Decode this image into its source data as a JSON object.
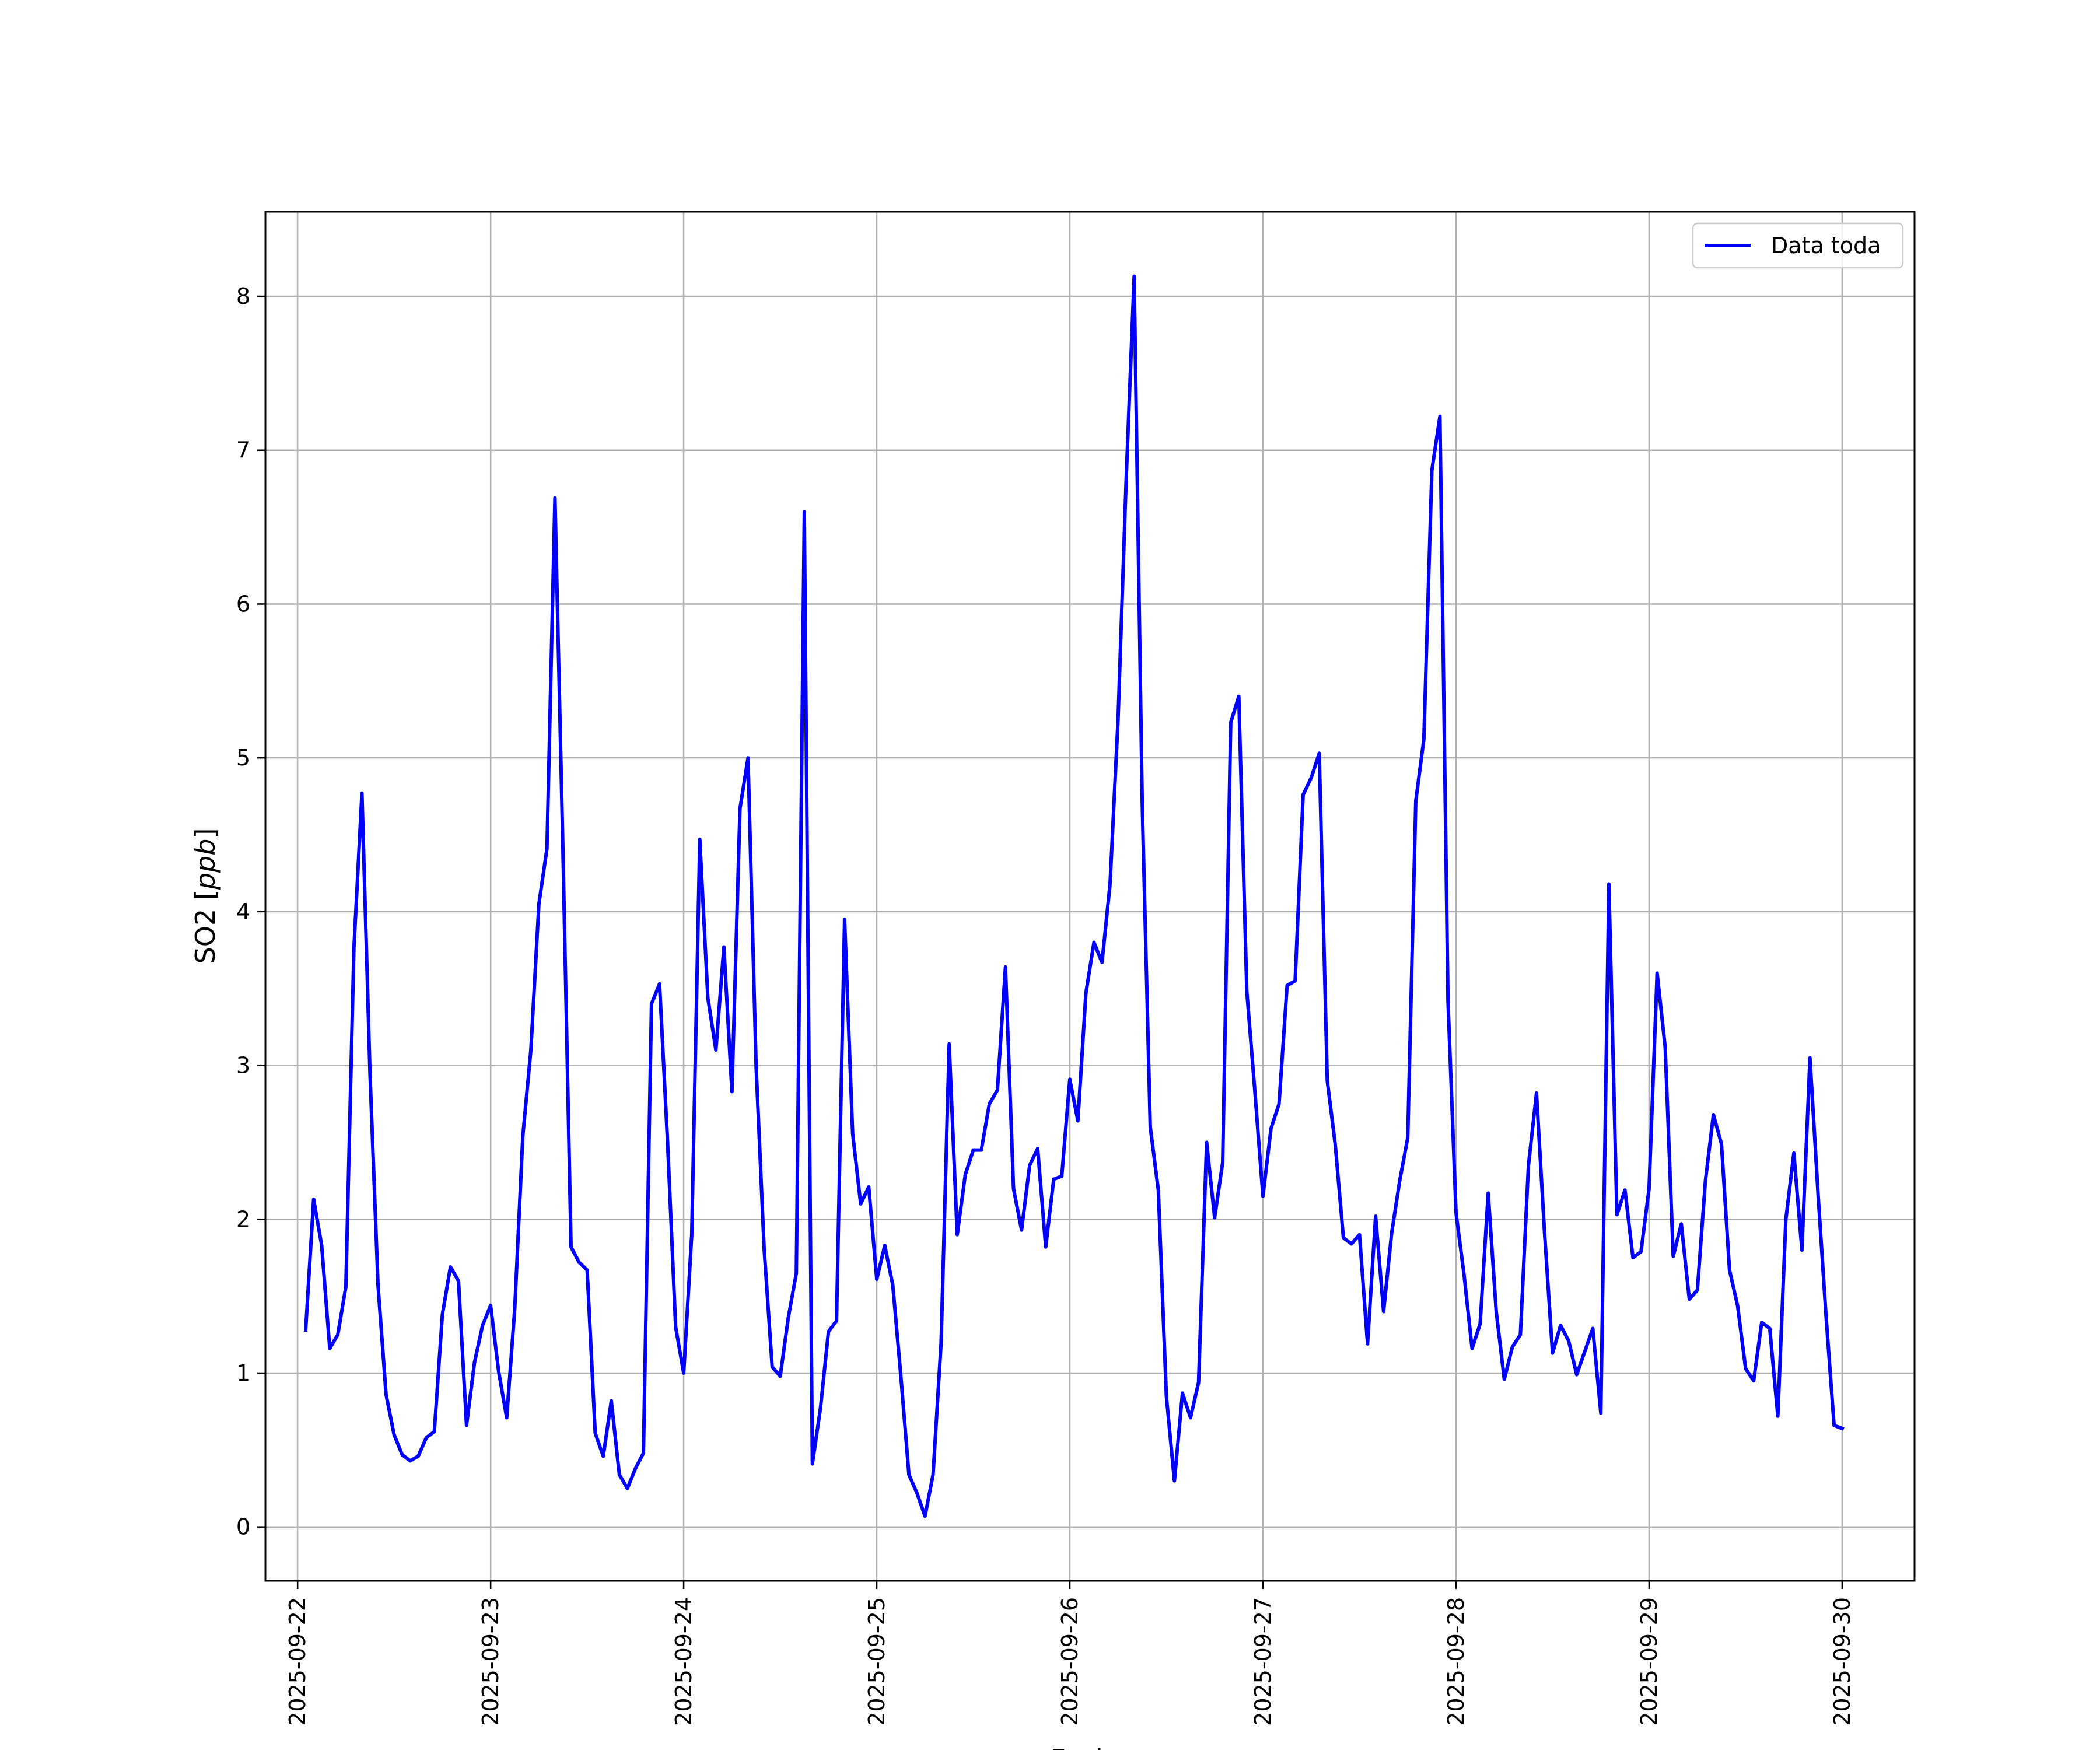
{
  "chart_data": {
    "type": "line",
    "title": "",
    "xlabel": "Fecha",
    "ylabel": "SO2 [ppb]",
    "ylabel_parts": {
      "prefix": "SO2 [",
      "unit": "ppb",
      "suffix": "]"
    },
    "xlim": [
      "2025-09-21T20:00",
      "2025-09-30T09:00"
    ],
    "ylim": [
      -0.35,
      8.55
    ],
    "grid": true,
    "legend_position": "top-right",
    "x_ticks": [
      "2025-09-22",
      "2025-09-23",
      "2025-09-24",
      "2025-09-25",
      "2025-09-26",
      "2025-09-27",
      "2025-09-28",
      "2025-09-29",
      "2025-09-30"
    ],
    "y_ticks": [
      0,
      1,
      2,
      3,
      4,
      5,
      6,
      7,
      8
    ],
    "line_color": "#0000ff",
    "series": [
      {
        "name": "Data toda",
        "x": [
          "2025-09-22T01:00",
          "2025-09-22T02:00",
          "2025-09-22T03:00",
          "2025-09-22T04:00",
          "2025-09-22T05:00",
          "2025-09-22T06:00",
          "2025-09-22T07:00",
          "2025-09-22T08:00",
          "2025-09-22T09:00",
          "2025-09-22T10:00",
          "2025-09-22T11:00",
          "2025-09-22T12:00",
          "2025-09-22T13:00",
          "2025-09-22T14:00",
          "2025-09-22T15:00",
          "2025-09-22T16:00",
          "2025-09-22T17:00",
          "2025-09-22T18:00",
          "2025-09-22T19:00",
          "2025-09-22T20:00",
          "2025-09-22T21:00",
          "2025-09-22T22:00",
          "2025-09-22T23:00",
          "2025-09-23T00:00",
          "2025-09-23T01:00",
          "2025-09-23T02:00",
          "2025-09-23T03:00",
          "2025-09-23T04:00",
          "2025-09-23T05:00",
          "2025-09-23T06:00",
          "2025-09-23T07:00",
          "2025-09-23T08:00",
          "2025-09-23T09:00",
          "2025-09-23T10:00",
          "2025-09-23T11:00",
          "2025-09-23T12:00",
          "2025-09-23T13:00",
          "2025-09-23T14:00",
          "2025-09-23T15:00",
          "2025-09-23T16:00",
          "2025-09-23T17:00",
          "2025-09-23T18:00",
          "2025-09-23T19:00",
          "2025-09-23T20:00",
          "2025-09-23T21:00",
          "2025-09-23T22:00",
          "2025-09-23T23:00",
          "2025-09-24T00:00",
          "2025-09-24T01:00",
          "2025-09-24T02:00",
          "2025-09-24T03:00",
          "2025-09-24T04:00",
          "2025-09-24T05:00",
          "2025-09-24T06:00",
          "2025-09-24T07:00",
          "2025-09-24T08:00",
          "2025-09-24T09:00",
          "2025-09-24T10:00",
          "2025-09-24T11:00",
          "2025-09-24T12:00",
          "2025-09-24T13:00",
          "2025-09-24T14:00",
          "2025-09-24T15:00",
          "2025-09-24T16:00",
          "2025-09-24T17:00",
          "2025-09-24T18:00",
          "2025-09-24T19:00",
          "2025-09-24T20:00",
          "2025-09-24T21:00",
          "2025-09-24T22:00",
          "2025-09-24T23:00",
          "2025-09-25T00:00",
          "2025-09-25T01:00",
          "2025-09-25T02:00",
          "2025-09-25T03:00",
          "2025-09-25T04:00",
          "2025-09-25T05:00",
          "2025-09-25T06:00",
          "2025-09-25T07:00",
          "2025-09-25T08:00",
          "2025-09-25T09:00",
          "2025-09-25T10:00",
          "2025-09-25T11:00",
          "2025-09-25T12:00",
          "2025-09-25T13:00",
          "2025-09-25T14:00",
          "2025-09-25T15:00",
          "2025-09-25T16:00",
          "2025-09-25T17:00",
          "2025-09-25T18:00",
          "2025-09-25T19:00",
          "2025-09-25T20:00",
          "2025-09-25T21:00",
          "2025-09-25T22:00",
          "2025-09-25T23:00",
          "2025-09-26T00:00",
          "2025-09-26T01:00",
          "2025-09-26T02:00",
          "2025-09-26T03:00",
          "2025-09-26T04:00",
          "2025-09-26T05:00",
          "2025-09-26T06:00",
          "2025-09-26T07:00",
          "2025-09-26T08:00",
          "2025-09-26T09:00",
          "2025-09-26T10:00",
          "2025-09-26T11:00",
          "2025-09-26T12:00",
          "2025-09-26T13:00",
          "2025-09-26T14:00",
          "2025-09-26T15:00",
          "2025-09-26T16:00",
          "2025-09-26T17:00",
          "2025-09-26T18:00",
          "2025-09-26T19:00",
          "2025-09-26T20:00",
          "2025-09-26T21:00",
          "2025-09-26T22:00",
          "2025-09-26T23:00",
          "2025-09-27T00:00",
          "2025-09-27T01:00",
          "2025-09-27T02:00",
          "2025-09-27T03:00",
          "2025-09-27T04:00",
          "2025-09-27T05:00",
          "2025-09-27T06:00",
          "2025-09-27T07:00",
          "2025-09-27T08:00",
          "2025-09-27T09:00",
          "2025-09-27T10:00",
          "2025-09-27T11:00",
          "2025-09-27T12:00",
          "2025-09-27T13:00",
          "2025-09-27T14:00",
          "2025-09-27T15:00",
          "2025-09-27T16:00",
          "2025-09-27T17:00",
          "2025-09-27T18:00",
          "2025-09-27T19:00",
          "2025-09-27T20:00",
          "2025-09-27T21:00",
          "2025-09-27T22:00",
          "2025-09-27T23:00",
          "2025-09-28T00:00",
          "2025-09-28T01:00",
          "2025-09-28T02:00",
          "2025-09-28T03:00",
          "2025-09-28T04:00",
          "2025-09-28T05:00",
          "2025-09-28T06:00",
          "2025-09-28T07:00",
          "2025-09-28T08:00",
          "2025-09-28T09:00",
          "2025-09-28T10:00",
          "2025-09-28T11:00",
          "2025-09-28T12:00",
          "2025-09-28T13:00",
          "2025-09-28T14:00",
          "2025-09-28T15:00",
          "2025-09-28T16:00",
          "2025-09-28T17:00",
          "2025-09-28T18:00",
          "2025-09-28T19:00",
          "2025-09-28T20:00",
          "2025-09-28T21:00",
          "2025-09-28T22:00",
          "2025-09-28T23:00",
          "2025-09-29T00:00",
          "2025-09-29T01:00",
          "2025-09-29T02:00",
          "2025-09-29T03:00",
          "2025-09-29T04:00",
          "2025-09-29T05:00",
          "2025-09-29T06:00",
          "2025-09-29T07:00",
          "2025-09-29T08:00",
          "2025-09-29T09:00",
          "2025-09-29T10:00",
          "2025-09-29T11:00",
          "2025-09-29T12:00",
          "2025-09-29T13:00",
          "2025-09-29T14:00",
          "2025-09-29T15:00",
          "2025-09-29T16:00",
          "2025-09-29T17:00",
          "2025-09-29T18:00",
          "2025-09-29T19:00",
          "2025-09-29T20:00",
          "2025-09-29T21:00",
          "2025-09-29T22:00",
          "2025-09-29T23:00",
          "2025-09-30T00:00"
        ],
        "values": [
          1.28,
          2.13,
          1.83,
          1.16,
          1.25,
          1.56,
          3.76,
          4.77,
          2.95,
          1.57,
          0.86,
          0.6,
          0.47,
          0.43,
          0.46,
          0.58,
          0.62,
          1.38,
          1.69,
          1.6,
          0.66,
          1.07,
          1.31,
          1.44,
          1.01,
          0.71,
          1.42,
          2.54,
          3.1,
          4.05,
          4.41,
          6.69,
          4.38,
          1.82,
          1.72,
          1.67,
          0.61,
          0.46,
          0.82,
          0.34,
          0.25,
          0.38,
          0.48,
          3.4,
          3.53,
          2.5,
          1.3,
          1.0,
          1.9,
          4.47,
          3.44,
          3.1,
          3.77,
          2.83,
          4.67,
          5.0,
          3.0,
          1.81,
          1.04,
          0.98,
          1.36,
          1.65,
          6.6,
          0.41,
          0.77,
          1.27,
          1.34,
          3.95,
          2.56,
          2.1,
          2.21,
          1.61,
          1.83,
          1.57,
          0.98,
          0.34,
          0.22,
          0.07,
          0.34,
          1.2,
          3.14,
          1.9,
          2.29,
          2.45,
          2.45,
          2.75,
          2.84,
          3.64,
          2.2,
          1.93,
          2.35,
          2.46,
          1.82,
          2.26,
          2.28,
          2.91,
          2.64,
          3.47,
          3.8,
          3.67,
          4.18,
          5.26,
          6.81,
          8.13,
          4.71,
          2.6,
          2.19,
          0.85,
          0.3,
          0.87,
          0.71,
          0.94,
          2.5,
          2.01,
          2.37,
          5.23,
          5.4,
          3.48,
          2.83,
          2.15,
          2.59,
          2.75,
          3.52,
          3.55,
          4.76,
          4.87,
          5.03,
          2.9,
          2.48,
          1.88,
          1.84,
          1.9,
          1.19,
          2.02,
          1.4,
          1.91,
          2.25,
          2.53,
          4.72,
          5.12,
          6.87,
          7.22,
          3.42,
          2.04,
          1.64,
          1.16,
          1.32,
          2.17,
          1.4,
          0.96,
          1.17,
          1.25,
          2.35,
          2.82,
          1.92,
          1.13,
          1.31,
          1.21,
          0.99,
          1.14,
          1.29,
          0.74,
          4.18,
          2.03,
          2.19,
          1.75,
          1.79,
          2.2,
          3.6,
          3.12,
          1.76,
          1.97,
          1.48,
          1.54,
          2.25,
          2.68,
          2.49,
          1.67,
          1.44,
          1.03,
          0.95,
          1.33,
          1.29,
          0.72,
          2.0,
          2.43,
          1.8,
          3.05,
          2.17,
          1.37,
          0.66,
          0.64
        ]
      }
    ]
  }
}
